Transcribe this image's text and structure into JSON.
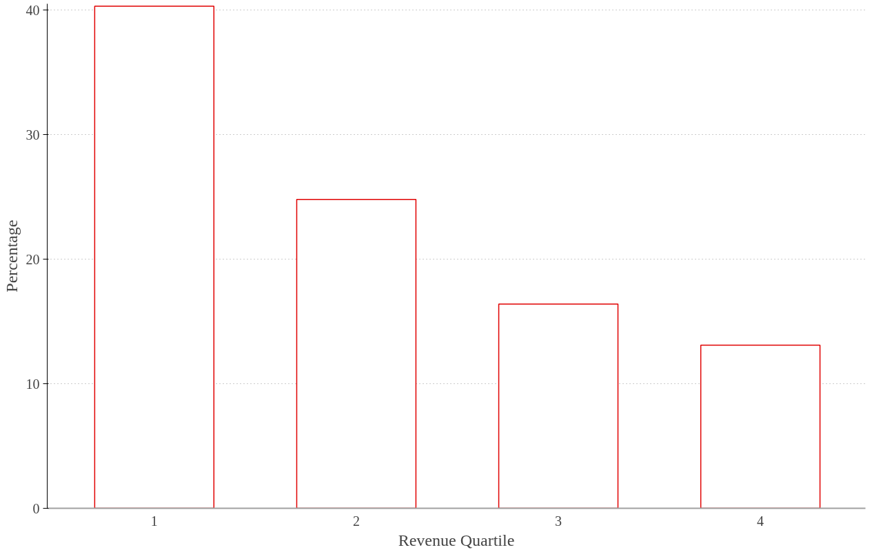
{
  "chart_data": {
    "type": "bar",
    "xlabel": "Revenue Quartile",
    "ylabel": "Percentage",
    "categories": [
      "1",
      "2",
      "3",
      "4"
    ],
    "series": [
      {
        "color": "#e00000",
        "values": [
          40.3,
          24.8,
          16.4,
          13.1
        ]
      }
    ],
    "ylim": [
      0,
      40.5
    ],
    "yticks": [
      0,
      10,
      20,
      30,
      40
    ],
    "grid": "y"
  }
}
